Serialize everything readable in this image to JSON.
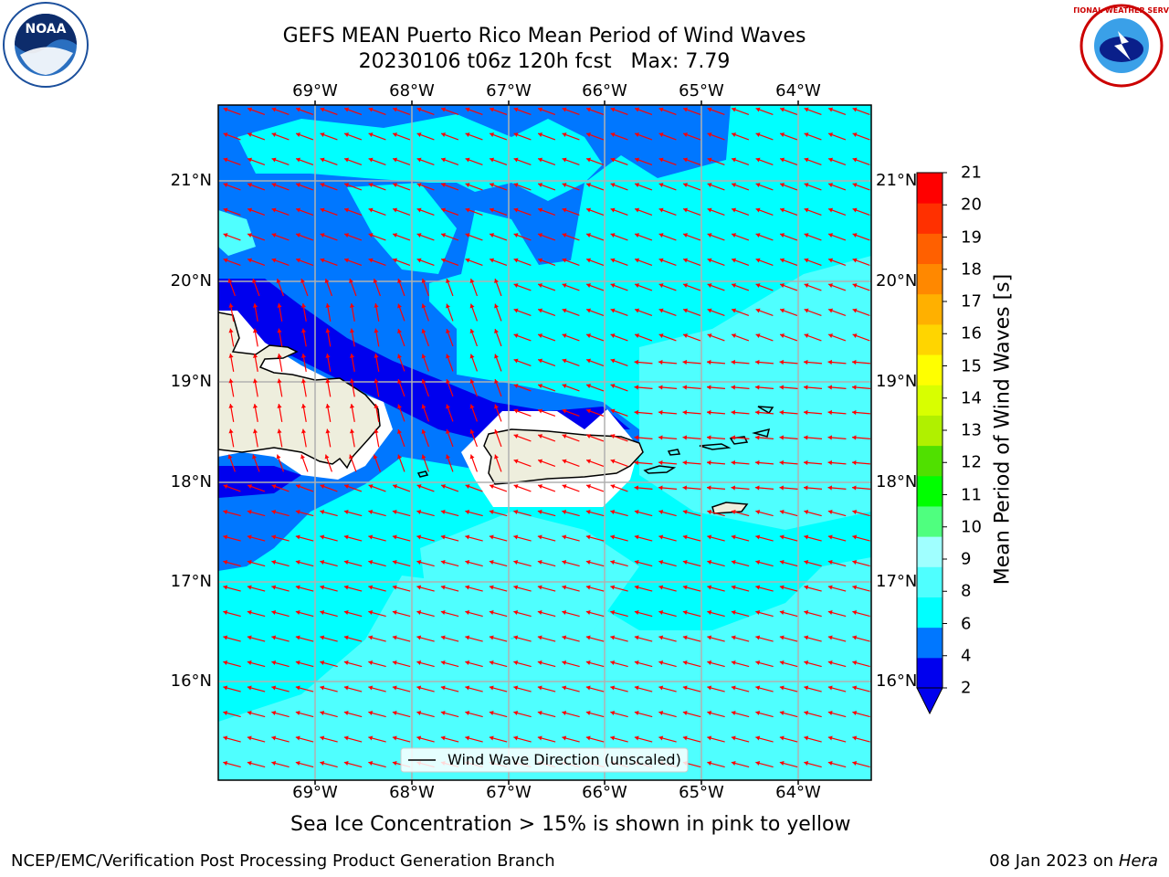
{
  "title": "GEFS MEAN Puerto Rico Mean Period of Wind Waves",
  "subtitle": "20230106 t06z 120h fcst   Max: 7.79",
  "lon_labels": [
    "69°W",
    "68°W",
    "67°W",
    "66°W",
    "65°W",
    "64°W"
  ],
  "lat_labels": [
    "21°N",
    "20°N",
    "19°N",
    "18°N",
    "17°N",
    "16°N"
  ],
  "colorbar": {
    "title": "Mean Period of Wind Waves [s]",
    "ticks": [
      "21",
      "20",
      "19",
      "18",
      "17",
      "16",
      "15",
      "14",
      "13",
      "12",
      "11",
      "10",
      "9",
      "8",
      "6",
      "4",
      "2"
    ],
    "colors": [
      "#0000ee",
      "#0077ff",
      "#00ffff",
      "#4fffff",
      "#a0ffff",
      "#4fff7f",
      "#00ff00",
      "#50e000",
      "#b0f000",
      "#d8ff00",
      "#ffff00",
      "#ffd500",
      "#ffb000",
      "#ff8800",
      "#ff6000",
      "#ff3000",
      "#ff0000"
    ]
  },
  "legend": {
    "label": "Wind Wave Direction (unscaled)"
  },
  "footnote": "Sea Ice Concentration > 15% is shown in pink to yellow",
  "credit_left": "NCEP/EMC/Verification Post Processing Product Generation Branch",
  "credit_right_date": "08 Jan 2023 on ",
  "credit_right_host": "Hera",
  "logos": {
    "left": {
      "text": "NOAA",
      "icon": "noaa-logo-icon"
    },
    "right": {
      "text": "NATIONAL WEATHER SERVICE",
      "icon": "nws-logo-icon"
    }
  },
  "colors": {
    "land": "#eeeedd",
    "coast": "#000000",
    "arrow": "#ff0000",
    "grid": "#b0b0b0"
  }
}
